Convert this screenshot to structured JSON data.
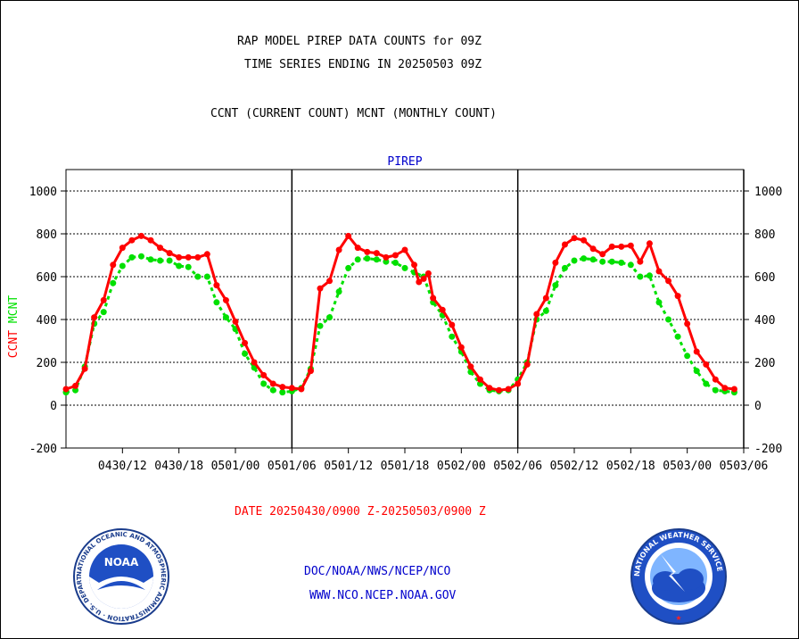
{
  "header": {
    "title_line1": "RAP MODEL PIREP DATA COUNTS for 09Z",
    "title_line2": "TIME SERIES ENDING IN 20250503 09Z",
    "subtitle": "CCNT (CURRENT COUNT) MCNT (MONTHLY COUNT)"
  },
  "footer": {
    "date_range": "DATE 20250430/0900 Z-20250503/0900 Z",
    "org_line": "DOC/NOAA/NWS/NCEP/NCO",
    "url_line": "WWW.NCO.NCEP.NOAA.GOV"
  },
  "logos": {
    "noaa_text": "NOAA",
    "noaa_ring": "NATIONAL OCEANIC AND ATMOSPHERIC ADMINISTRATION · U.S. DEPARTMENT OF COMMERCE",
    "nws_ring": "NATIONAL WEATHER SERVICE"
  },
  "colors": {
    "ccnt": "#ff0000",
    "mcnt": "#00e000",
    "title": "#000000",
    "panel_title": "#0000cc",
    "date_text": "#ff0000",
    "link_text": "#0000cc"
  },
  "chart_data": {
    "type": "line",
    "title": "PIREP",
    "ylabel_parts": [
      {
        "text": "CCNT",
        "color": "#ff0000"
      },
      {
        "text": "MCNT",
        "color": "#00e000"
      }
    ],
    "ylim": [
      -200,
      1100
    ],
    "yticks": [
      -200,
      0,
      200,
      400,
      600,
      800,
      1000
    ],
    "grid": true,
    "x_range_hours": [
      -3,
      69
    ],
    "x_ticks": [
      {
        "h": 3,
        "label": "0430/12"
      },
      {
        "h": 9,
        "label": "0430/18"
      },
      {
        "h": 15,
        "label": "0501/00"
      },
      {
        "h": 21,
        "label": "0501/06"
      },
      {
        "h": 27,
        "label": "0501/12"
      },
      {
        "h": 33,
        "label": "0501/18"
      },
      {
        "h": 39,
        "label": "0502/00"
      },
      {
        "h": 45,
        "label": "0502/06"
      },
      {
        "h": 51,
        "label": "0502/12"
      },
      {
        "h": 57,
        "label": "0502/18"
      },
      {
        "h": 63,
        "label": "0503/00"
      },
      {
        "h": 69,
        "label": "0503/06"
      }
    ],
    "day_boundaries": [
      21,
      45,
      69
    ],
    "series": [
      {
        "name": "CCNT",
        "color": "#ff0000",
        "points": [
          [
            -3,
            75
          ],
          [
            -2,
            90
          ],
          [
            -1,
            170
          ],
          [
            0,
            410
          ],
          [
            1,
            490
          ],
          [
            2,
            655
          ],
          [
            3,
            735
          ],
          [
            4,
            770
          ],
          [
            5,
            790
          ],
          [
            6,
            770
          ],
          [
            7,
            735
          ],
          [
            8,
            710
          ],
          [
            9,
            690
          ],
          [
            10,
            690
          ],
          [
            11,
            690
          ],
          [
            12,
            705
          ],
          [
            13,
            560
          ],
          [
            14,
            490
          ],
          [
            15,
            390
          ],
          [
            16,
            290
          ],
          [
            17,
            200
          ],
          [
            18,
            140
          ],
          [
            19,
            100
          ],
          [
            20,
            85
          ],
          [
            21,
            80
          ],
          [
            22,
            75
          ],
          [
            23,
            160
          ],
          [
            24,
            545
          ],
          [
            25,
            580
          ],
          [
            26,
            725
          ],
          [
            27,
            790
          ],
          [
            28,
            735
          ],
          [
            29,
            715
          ],
          [
            30,
            710
          ],
          [
            31,
            690
          ],
          [
            32,
            700
          ],
          [
            33,
            725
          ],
          [
            34,
            655
          ],
          [
            34.5,
            575
          ],
          [
            35,
            590
          ],
          [
            35.5,
            615
          ],
          [
            36,
            500
          ],
          [
            37,
            445
          ],
          [
            38,
            375
          ],
          [
            39,
            270
          ],
          [
            40,
            180
          ],
          [
            41,
            120
          ],
          [
            42,
            80
          ],
          [
            43,
            70
          ],
          [
            44,
            75
          ],
          [
            45,
            100
          ],
          [
            46,
            190
          ],
          [
            47,
            425
          ],
          [
            48,
            500
          ],
          [
            49,
            665
          ],
          [
            50,
            750
          ],
          [
            51,
            780
          ],
          [
            52,
            770
          ],
          [
            53,
            730
          ],
          [
            54,
            705
          ],
          [
            55,
            740
          ],
          [
            56,
            740
          ],
          [
            57,
            745
          ],
          [
            58,
            670
          ],
          [
            59,
            755
          ],
          [
            60,
            625
          ],
          [
            61,
            580
          ],
          [
            62,
            510
          ],
          [
            63,
            380
          ],
          [
            64,
            250
          ],
          [
            65,
            190
          ],
          [
            66,
            120
          ],
          [
            67,
            80
          ],
          [
            68,
            75
          ]
        ]
      },
      {
        "name": "MCNT",
        "color": "#00e000",
        "points": [
          [
            -3,
            60
          ],
          [
            -2,
            70
          ],
          [
            -1,
            180
          ],
          [
            0,
            380
          ],
          [
            1,
            435
          ],
          [
            2,
            570
          ],
          [
            3,
            650
          ],
          [
            4,
            690
          ],
          [
            5,
            695
          ],
          [
            6,
            680
          ],
          [
            7,
            675
          ],
          [
            8,
            675
          ],
          [
            9,
            650
          ],
          [
            10,
            645
          ],
          [
            11,
            600
          ],
          [
            12,
            600
          ],
          [
            13,
            480
          ],
          [
            14,
            410
          ],
          [
            15,
            355
          ],
          [
            16,
            240
          ],
          [
            17,
            175
          ],
          [
            18,
            100
          ],
          [
            19,
            70
          ],
          [
            20,
            60
          ],
          [
            21,
            65
          ],
          [
            22,
            80
          ],
          [
            23,
            170
          ],
          [
            24,
            370
          ],
          [
            25,
            410
          ],
          [
            26,
            530
          ],
          [
            27,
            640
          ],
          [
            28,
            680
          ],
          [
            29,
            685
          ],
          [
            30,
            680
          ],
          [
            31,
            670
          ],
          [
            32,
            665
          ],
          [
            33,
            640
          ],
          [
            34,
            620
          ],
          [
            35,
            600
          ],
          [
            36,
            480
          ],
          [
            37,
            420
          ],
          [
            38,
            320
          ],
          [
            39,
            250
          ],
          [
            40,
            155
          ],
          [
            41,
            100
          ],
          [
            42,
            70
          ],
          [
            43,
            65
          ],
          [
            44,
            70
          ],
          [
            45,
            120
          ],
          [
            46,
            200
          ],
          [
            47,
            400
          ],
          [
            48,
            440
          ],
          [
            49,
            560
          ],
          [
            50,
            640
          ],
          [
            51,
            675
          ],
          [
            52,
            685
          ],
          [
            53,
            680
          ],
          [
            54,
            670
          ],
          [
            55,
            670
          ],
          [
            56,
            665
          ],
          [
            57,
            655
          ],
          [
            58,
            600
          ],
          [
            59,
            605
          ],
          [
            60,
            480
          ],
          [
            61,
            400
          ],
          [
            62,
            320
          ],
          [
            63,
            230
          ],
          [
            64,
            160
          ],
          [
            65,
            100
          ],
          [
            66,
            70
          ],
          [
            67,
            65
          ],
          [
            68,
            60
          ]
        ]
      }
    ]
  }
}
